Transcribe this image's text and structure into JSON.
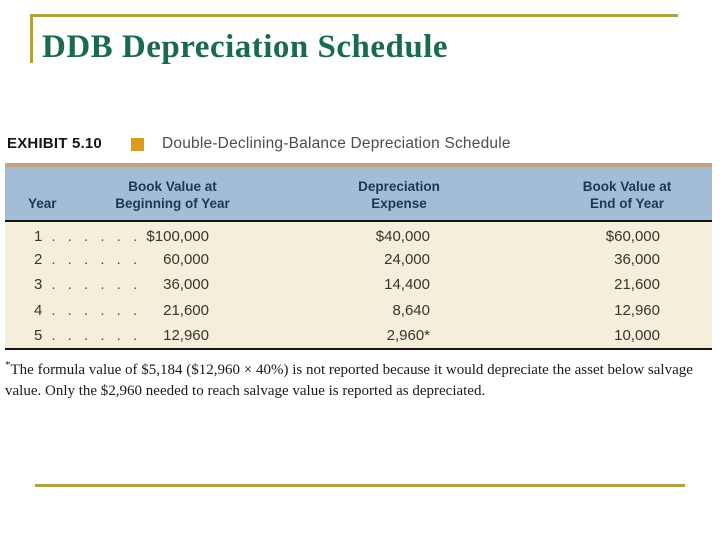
{
  "slide": {
    "title": "DDB Depreciation Schedule"
  },
  "exhibit": {
    "label": "EXHIBIT 5.10",
    "title": "Double-Declining-Balance Depreciation Schedule",
    "bullet_icon": "orange-square"
  },
  "table": {
    "columns": [
      {
        "line1": "",
        "line2": "Year"
      },
      {
        "line1": "Book Value at",
        "line2": "Beginning of Year"
      },
      {
        "line1": "Depreciation",
        "line2": "Expense"
      },
      {
        "line1": "Book Value at",
        "line2": "End of Year"
      }
    ],
    "rows": [
      {
        "year": "1",
        "leader": ". . . . . .",
        "book_value_begin": "$100,000",
        "depreciation_expense": "$40,000",
        "book_value_end": "$60,000"
      },
      {
        "year": "2",
        "leader": ". . . . . .",
        "book_value_begin": "60,000",
        "depreciation_expense": "24,000",
        "book_value_end": "36,000"
      },
      {
        "year": "3",
        "leader": ". . . . . .",
        "book_value_begin": "36,000",
        "depreciation_expense": "14,400",
        "book_value_end": "21,600"
      },
      {
        "year": "4",
        "leader": ". . . . . .",
        "book_value_begin": "21,600",
        "depreciation_expense": "8,640",
        "book_value_end": "12,960"
      },
      {
        "year": "5",
        "leader": ". . . . . .",
        "book_value_begin": "12,960",
        "depreciation_expense": "2,960*",
        "book_value_end": "10,000"
      }
    ]
  },
  "footnote": {
    "marker": "*",
    "text": "The formula value of $5,184 ($12,960 × 40%) is not reported because it would depreciate the asset below salvage value. Only the $2,960 needed to reach salvage value is reported as depreciated."
  },
  "colors": {
    "title_green": "#1a6a4d",
    "accent_gold": "#b4a03c",
    "exhibit_square_orange": "#dd9b1e",
    "table_top_border_tan": "#c4a284",
    "header_bg_blue": "#a3bdd6",
    "header_text_navy": "#1e3755",
    "body_bg_cream": "#f4eeda"
  }
}
